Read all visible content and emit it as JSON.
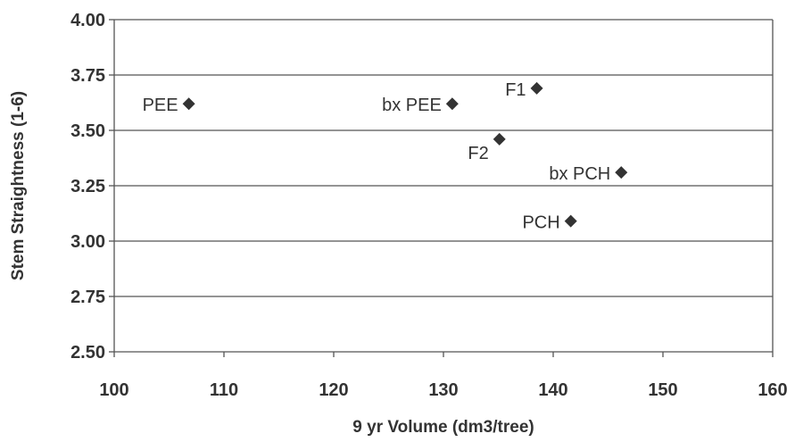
{
  "chart_data": {
    "type": "scatter",
    "title": "",
    "xlabel": "9 yr Volume (dm3/tree)",
    "ylabel": "Stem Straightness (1-6)",
    "xlim": [
      100,
      160
    ],
    "ylim": [
      2.5,
      4.0
    ],
    "xticks": [
      "100",
      "110",
      "120",
      "130",
      "140",
      "150",
      "160"
    ],
    "yticks": [
      "2.50",
      "2.75",
      "3.00",
      "3.25",
      "3.50",
      "3.75",
      "4.00"
    ],
    "grid": "horizontal",
    "legend": "none",
    "marker_color": "#333333",
    "points": [
      {
        "label": "PEE",
        "x": 106.8,
        "y": 3.62,
        "label_side": "left"
      },
      {
        "label": "bx PEE",
        "x": 130.8,
        "y": 3.62,
        "label_side": "left"
      },
      {
        "label": "F1",
        "x": 138.5,
        "y": 3.69,
        "label_side": "left"
      },
      {
        "label": "F2",
        "x": 135.1,
        "y": 3.46,
        "label_side": "below-left"
      },
      {
        "label": "bx PCH",
        "x": 146.2,
        "y": 3.31,
        "label_side": "left"
      },
      {
        "label": "PCH",
        "x": 141.6,
        "y": 3.09,
        "label_side": "left"
      }
    ]
  }
}
